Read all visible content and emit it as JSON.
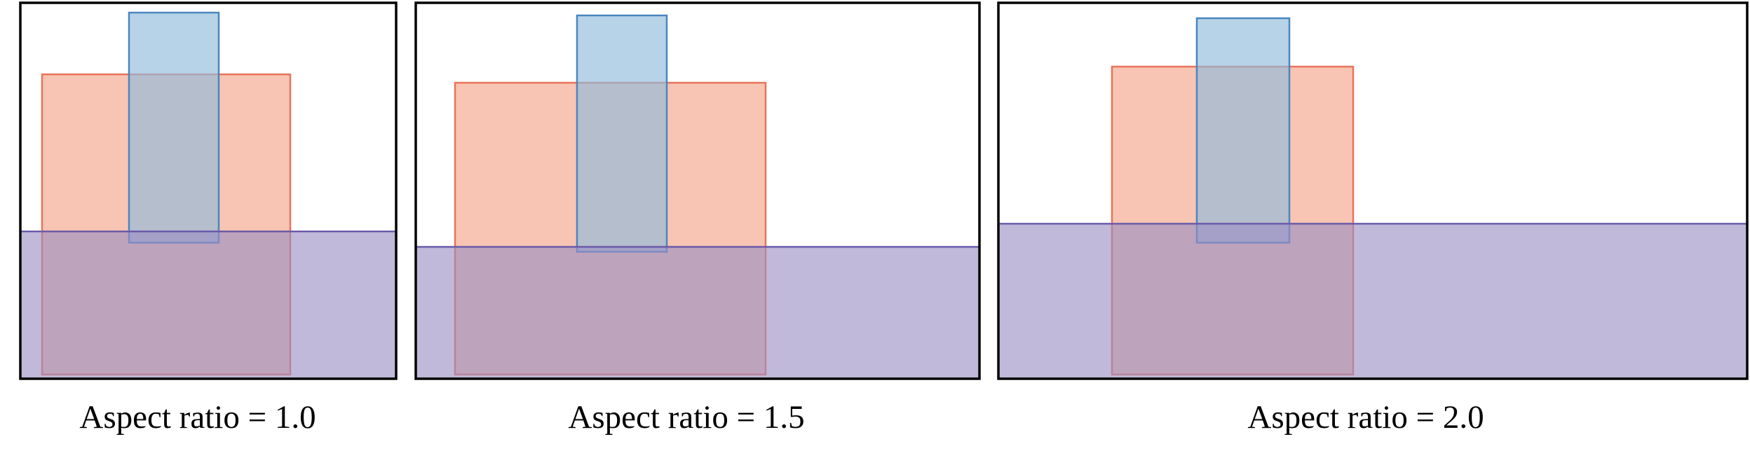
{
  "panels": [
    {
      "caption": "Aspect ratio = 1.0"
    },
    {
      "caption": "Aspect ratio = 1.5"
    },
    {
      "caption": "Aspect ratio = 2.0"
    }
  ],
  "colors": {
    "frame": "#000000",
    "orange_fill": "#f4a58a",
    "orange_stroke": "#e8735a",
    "blue_fill": "#8fbcdc",
    "blue_stroke": "#4a86c0",
    "purple_fill": "#9b8ec4",
    "purple_stroke": "#6a5aa8"
  }
}
